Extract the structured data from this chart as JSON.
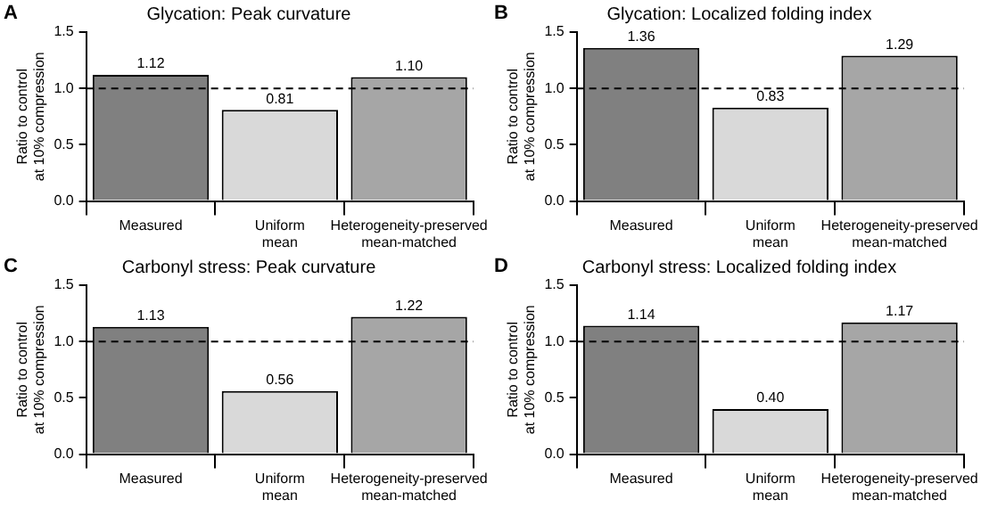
{
  "chart_data": [
    {
      "type": "bar",
      "title": "Glycation: Peak curvature",
      "annotations": [
        "A"
      ],
      "ylabel": "Ratio to control\nat 10% compression",
      "categories": [
        "Measured",
        "Uniform\nmean",
        "Heterogeneity-preserved\nmean-matched"
      ],
      "values": [
        1.12,
        0.81,
        1.1
      ],
      "value_labels": [
        "1.12",
        "0.81",
        "1.10"
      ],
      "colors": [
        "#808080",
        "#d9d9d9",
        "#a6a6a6"
      ],
      "ylim": [
        0,
        1.5
      ],
      "yticks": [
        {
          "value": 0,
          "label": "0.0"
        },
        {
          "value": 0.5,
          "label": "0.5"
        },
        {
          "value": 1,
          "label": "1.0"
        },
        {
          "value": 1.5,
          "label": "1.5"
        }
      ],
      "ref_lines": [
        {
          "axis": "y",
          "value": 1,
          "line_style": "dashed",
          "color": "#000000"
        }
      ],
      "grid": false,
      "legend": false
    },
    {
      "type": "bar",
      "title": "Glycation: Localized folding index",
      "annotations": [
        "B"
      ],
      "ylabel": "Ratio to control\nat 10% compression",
      "categories": [
        "Measured",
        "Uniform\nmean",
        "Heterogeneity-preserved\nmean-matched"
      ],
      "values": [
        1.36,
        0.83,
        1.29
      ],
      "value_labels": [
        "1.36",
        "0.83",
        "1.29"
      ],
      "colors": [
        "#808080",
        "#d9d9d9",
        "#a6a6a6"
      ],
      "ylim": [
        0,
        1.5
      ],
      "yticks": [
        {
          "value": 0,
          "label": "0.0"
        },
        {
          "value": 0.5,
          "label": "0.5"
        },
        {
          "value": 1,
          "label": "1.0"
        },
        {
          "value": 1.5,
          "label": "1.5"
        }
      ],
      "ref_lines": [
        {
          "axis": "y",
          "value": 1,
          "line_style": "dashed",
          "color": "#000000"
        }
      ],
      "grid": false,
      "legend": false
    },
    {
      "type": "bar",
      "title": "Carbonyl stress: Peak curvature",
      "annotations": [
        "C"
      ],
      "ylabel": "Ratio to control\nat 10% compression",
      "categories": [
        "Measured",
        "Uniform\nmean",
        "Heterogeneity-preserved\nmean-matched"
      ],
      "values": [
        1.13,
        0.56,
        1.22
      ],
      "value_labels": [
        "1.13",
        "0.56",
        "1.22"
      ],
      "colors": [
        "#808080",
        "#d9d9d9",
        "#a6a6a6"
      ],
      "ylim": [
        0,
        1.5
      ],
      "yticks": [
        {
          "value": 0,
          "label": "0.0"
        },
        {
          "value": 0.5,
          "label": "0.5"
        },
        {
          "value": 1,
          "label": "1.0"
        },
        {
          "value": 1.5,
          "label": "1.5"
        }
      ],
      "ref_lines": [
        {
          "axis": "y",
          "value": 1,
          "line_style": "dashed",
          "color": "#000000"
        }
      ],
      "grid": false,
      "legend": false
    },
    {
      "type": "bar",
      "title": "Carbonyl stress: Localized folding index",
      "annotations": [
        "D"
      ],
      "ylabel": "Ratio to control\nat 10% compression",
      "categories": [
        "Measured",
        "Uniform\nmean",
        "Heterogeneity-preserved\nmean-matched"
      ],
      "values": [
        1.14,
        0.4,
        1.17
      ],
      "value_labels": [
        "1.14",
        "0.40",
        "1.17"
      ],
      "colors": [
        "#808080",
        "#d9d9d9",
        "#a6a6a6"
      ],
      "ylim": [
        0,
        1.5
      ],
      "yticks": [
        {
          "value": 0,
          "label": "0.0"
        },
        {
          "value": 0.5,
          "label": "0.5"
        },
        {
          "value": 1,
          "label": "1.0"
        },
        {
          "value": 1.5,
          "label": "1.5"
        }
      ],
      "ref_lines": [
        {
          "axis": "y",
          "value": 1,
          "line_style": "dashed",
          "color": "#000000"
        }
      ],
      "grid": false,
      "legend": false
    }
  ]
}
